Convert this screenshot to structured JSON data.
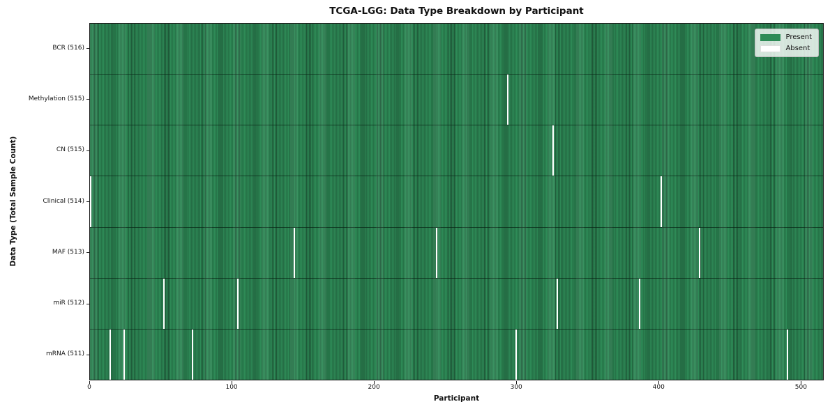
{
  "chart_data": {
    "type": "heatmap",
    "title": "TCGA-LGG: Data Type Breakdown by Participant",
    "xlabel": "Participant",
    "ylabel": "Data Type (Total Sample Count)",
    "xlim": [
      0,
      516
    ],
    "n_participants": 516,
    "x_ticks": [
      0,
      100,
      200,
      300,
      400,
      500
    ],
    "grid": false,
    "legend_position": "upper right",
    "legend": [
      {
        "label": "Present",
        "color": "#2e8b57"
      },
      {
        "label": "Absent",
        "color": "#ffffff"
      }
    ],
    "colors": {
      "present": "#2e8b57",
      "present_edge": "#1f5c3a",
      "absent": "#ffffff",
      "row_divider": "#0a2616",
      "axis": "#1a1a1a",
      "legend_border": "#bdbdbd"
    },
    "rows": [
      {
        "label": "BCR (516)",
        "data_type": "BCR",
        "sample_count": 516,
        "absent_participants": []
      },
      {
        "label": "Methylation (515)",
        "data_type": "Methylation",
        "sample_count": 515,
        "absent_participants": [
          294
        ]
      },
      {
        "label": "CN (515)",
        "data_type": "CN",
        "sample_count": 515,
        "absent_participants": [
          326
        ]
      },
      {
        "label": "Clinical (514)",
        "data_type": "Clinical",
        "sample_count": 514,
        "absent_participants": [
          0,
          402
        ]
      },
      {
        "label": "MAF (513)",
        "data_type": "MAF",
        "sample_count": 513,
        "absent_participants": [
          144,
          244,
          429
        ]
      },
      {
        "label": "miR (512)",
        "data_type": "miR",
        "sample_count": 512,
        "absent_participants": [
          52,
          104,
          329,
          387
        ]
      },
      {
        "label": "mRNA (511)",
        "data_type": "mRNA",
        "sample_count": 511,
        "absent_participants": [
          14,
          24,
          72,
          300,
          491
        ]
      }
    ]
  }
}
